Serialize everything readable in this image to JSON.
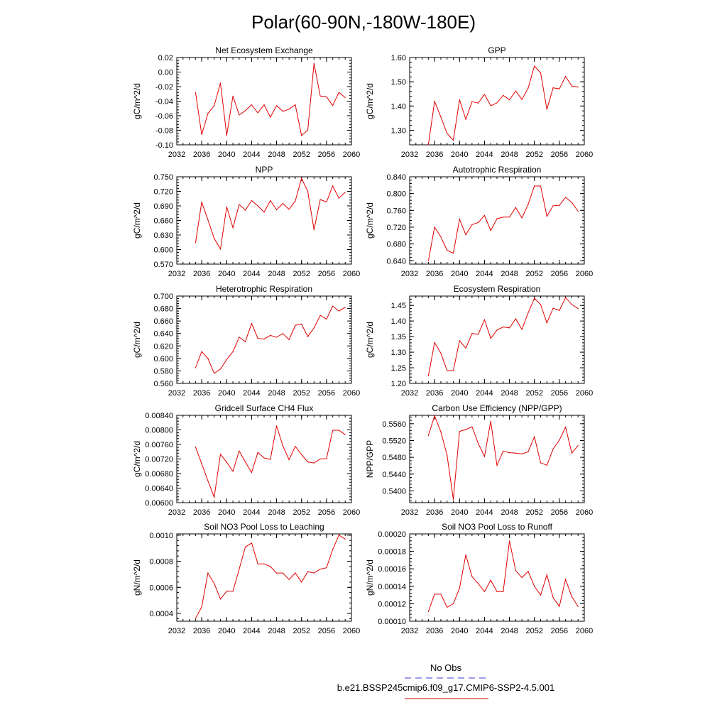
{
  "title": "Polar(60-90N,-180W-180E)",
  "legend": {
    "obs_label": "No Obs",
    "obs_color": "#3b3bd6",
    "model_label": "b.e21.BSSP245cmip6.f09_g17.CMIP6-SSP2-4.5.001",
    "model_color": "#e00000"
  },
  "chart_data": [
    {
      "type": "line",
      "title": "Net Ecosystem Exchange",
      "ylabel": "gC/m^2/d",
      "xlim": [
        2032,
        2060
      ],
      "ylim": [
        -0.1,
        0.02
      ],
      "xticks": [
        "2032",
        "2036",
        "2040",
        "2044",
        "2048",
        "2052",
        "2056",
        "2060"
      ],
      "yticks": [
        "-0.10",
        "-0.08",
        "-0.06",
        "-0.04",
        "-0.02",
        "0.00",
        "0.02"
      ],
      "x": [
        2035,
        2036,
        2037,
        2038,
        2039,
        2040,
        2041,
        2042,
        2043,
        2044,
        2045,
        2046,
        2047,
        2048,
        2049,
        2050,
        2051,
        2052,
        2053,
        2054,
        2055,
        2056,
        2057,
        2058,
        2059
      ],
      "series": [
        {
          "values": [
            -0.028,
            -0.086,
            -0.057,
            -0.046,
            -0.015,
            -0.087,
            -0.033,
            -0.059,
            -0.053,
            -0.045,
            -0.056,
            -0.045,
            -0.062,
            -0.046,
            -0.054,
            -0.051,
            -0.045,
            -0.087,
            -0.08,
            0.012,
            -0.033,
            -0.034,
            -0.046,
            -0.028,
            -0.035
          ]
        }
      ]
    },
    {
      "type": "line",
      "title": "GPP",
      "ylabel": "gC/m^2/d",
      "xlim": [
        2032,
        2060
      ],
      "ylim": [
        1.24,
        1.6
      ],
      "xticks": [
        "2032",
        "2036",
        "2040",
        "2044",
        "2048",
        "2052",
        "2056",
        "2060"
      ],
      "yticks": [
        "1.30",
        "1.40",
        "1.50",
        "1.60"
      ],
      "x": [
        2035,
        2036,
        2037,
        2038,
        2039,
        2040,
        2041,
        2042,
        2043,
        2044,
        2045,
        2046,
        2047,
        2048,
        2049,
        2050,
        2051,
        2052,
        2053,
        2054,
        2055,
        2056,
        2057,
        2058,
        2059
      ],
      "series": [
        {
          "values": [
            1.24,
            1.419,
            1.355,
            1.287,
            1.259,
            1.426,
            1.345,
            1.418,
            1.412,
            1.448,
            1.401,
            1.413,
            1.444,
            1.426,
            1.462,
            1.427,
            1.474,
            1.565,
            1.537,
            1.386,
            1.475,
            1.471,
            1.522,
            1.483,
            1.478
          ]
        }
      ]
    },
    {
      "type": "line",
      "title": "NPP",
      "ylabel": "gC/m^2/d",
      "xlim": [
        2032,
        2060
      ],
      "ylim": [
        0.57,
        0.75
      ],
      "xticks": [
        "2032",
        "2036",
        "2040",
        "2044",
        "2048",
        "2052",
        "2056",
        "2060"
      ],
      "yticks": [
        "0.570",
        "0.600",
        "0.630",
        "0.660",
        "0.690",
        "0.720",
        "0.750"
      ],
      "x": [
        2035,
        2036,
        2037,
        2038,
        2039,
        2040,
        2041,
        2042,
        2043,
        2044,
        2045,
        2046,
        2047,
        2048,
        2049,
        2050,
        2051,
        2052,
        2053,
        2054,
        2055,
        2056,
        2057,
        2058,
        2059
      ],
      "series": [
        {
          "values": [
            0.614,
            0.698,
            0.661,
            0.623,
            0.601,
            0.688,
            0.645,
            0.693,
            0.681,
            0.701,
            0.69,
            0.677,
            0.701,
            0.682,
            0.695,
            0.683,
            0.7,
            0.747,
            0.72,
            0.641,
            0.703,
            0.698,
            0.731,
            0.706,
            0.718
          ]
        }
      ]
    },
    {
      "type": "line",
      "title": "Autotrophic Respiration",
      "ylabel": "gC/m^2/d",
      "xlim": [
        2032,
        2060
      ],
      "ylim": [
        0.632,
        0.84
      ],
      "xticks": [
        "2032",
        "2036",
        "2040",
        "2044",
        "2048",
        "2052",
        "2056",
        "2060"
      ],
      "yticks": [
        "0.640",
        "0.680",
        "0.720",
        "0.760",
        "0.800",
        "0.840"
      ],
      "x": [
        2035,
        2036,
        2037,
        2038,
        2039,
        2040,
        2041,
        2042,
        2043,
        2044,
        2045,
        2046,
        2047,
        2048,
        2049,
        2050,
        2051,
        2052,
        2053,
        2054,
        2055,
        2056,
        2057,
        2058,
        2059
      ],
      "series": [
        {
          "values": [
            0.64,
            0.72,
            0.697,
            0.665,
            0.658,
            0.739,
            0.702,
            0.726,
            0.731,
            0.748,
            0.712,
            0.74,
            0.744,
            0.744,
            0.767,
            0.742,
            0.774,
            0.818,
            0.818,
            0.746,
            0.771,
            0.772,
            0.791,
            0.779,
            0.758
          ]
        }
      ]
    },
    {
      "type": "line",
      "title": "Heterotrophic Respiration",
      "ylabel": "gC/m^2/d",
      "xlim": [
        2032,
        2060
      ],
      "ylim": [
        0.56,
        0.7
      ],
      "xticks": [
        "2032",
        "2036",
        "2040",
        "2044",
        "2048",
        "2052",
        "2056",
        "2060"
      ],
      "yticks": [
        "0.560",
        "0.580",
        "0.600",
        "0.620",
        "0.640",
        "0.660",
        "0.680",
        "0.700"
      ],
      "x": [
        2035,
        2036,
        2037,
        2038,
        2039,
        2040,
        2041,
        2042,
        2043,
        2044,
        2045,
        2046,
        2047,
        2048,
        2049,
        2050,
        2051,
        2052,
        2053,
        2054,
        2055,
        2056,
        2057,
        2058,
        2059
      ],
      "series": [
        {
          "values": [
            0.585,
            0.611,
            0.6,
            0.576,
            0.583,
            0.598,
            0.611,
            0.634,
            0.627,
            0.656,
            0.632,
            0.631,
            0.637,
            0.634,
            0.64,
            0.63,
            0.653,
            0.655,
            0.635,
            0.649,
            0.669,
            0.663,
            0.684,
            0.676,
            0.682
          ]
        }
      ]
    },
    {
      "type": "line",
      "title": "Ecosystem Respiration",
      "ylabel": "gC/m^2/d",
      "xlim": [
        2032,
        2060
      ],
      "ylim": [
        1.2,
        1.48
      ],
      "xticks": [
        "2032",
        "2036",
        "2040",
        "2044",
        "2048",
        "2052",
        "2056",
        "2060"
      ],
      "yticks": [
        "1.20",
        "1.25",
        "1.30",
        "1.35",
        "1.40",
        "1.45"
      ],
      "x": [
        2035,
        2036,
        2037,
        2038,
        2039,
        2040,
        2041,
        2042,
        2043,
        2044,
        2045,
        2046,
        2047,
        2048,
        2049,
        2050,
        2051,
        2052,
        2053,
        2054,
        2055,
        2056,
        2057,
        2058,
        2059
      ],
      "series": [
        {
          "values": [
            1.224,
            1.331,
            1.297,
            1.241,
            1.241,
            1.337,
            1.313,
            1.36,
            1.357,
            1.404,
            1.344,
            1.371,
            1.381,
            1.378,
            1.407,
            1.373,
            1.426,
            1.473,
            1.453,
            1.394,
            1.441,
            1.434,
            1.475,
            1.453,
            1.44
          ]
        }
      ]
    },
    {
      "type": "line",
      "title": "Gridcell Surface CH4 Flux",
      "ylabel": "gC/m^2/d",
      "xlim": [
        2032,
        2060
      ],
      "ylim": [
        0.006,
        0.0084
      ],
      "xticks": [
        "2032",
        "2036",
        "2040",
        "2044",
        "2048",
        "2052",
        "2056",
        "2060"
      ],
      "yticks": [
        "0.00600",
        "0.00640",
        "0.00680",
        "0.00720",
        "0.00760",
        "0.00800",
        "0.00840"
      ],
      "x": [
        2035,
        2036,
        2037,
        2038,
        2039,
        2040,
        2041,
        2042,
        2043,
        2044,
        2045,
        2046,
        2047,
        2048,
        2049,
        2050,
        2051,
        2052,
        2053,
        2054,
        2055,
        2056,
        2057,
        2058,
        2059
      ],
      "series": [
        {
          "values": [
            0.00753,
            0.00707,
            0.0066,
            0.00615,
            0.00733,
            0.00711,
            0.00686,
            0.00742,
            0.00712,
            0.00683,
            0.00738,
            0.00723,
            0.00719,
            0.00811,
            0.00756,
            0.00718,
            0.00755,
            0.00732,
            0.00712,
            0.00709,
            0.0072,
            0.00721,
            0.00799,
            0.00799,
            0.00787
          ]
        }
      ]
    },
    {
      "type": "line",
      "title": "Carbon Use Efficiency (NPP/GPP)",
      "ylabel": "NPP/GPP",
      "xlim": [
        2032,
        2060
      ],
      "ylim": [
        0.5372,
        0.558
      ],
      "xticks": [
        "2032",
        "2036",
        "2040",
        "2044",
        "2048",
        "2052",
        "2056",
        "2060"
      ],
      "yticks": [
        "0.5400",
        "0.5440",
        "0.5480",
        "0.5520",
        "0.5560"
      ],
      "x": [
        2035,
        2036,
        2037,
        2038,
        2039,
        2040,
        2041,
        2042,
        2043,
        2044,
        2045,
        2046,
        2047,
        2048,
        2049,
        2050,
        2051,
        2052,
        2053,
        2054,
        2055,
        2056,
        2057,
        2058,
        2059
      ],
      "series": [
        {
          "values": [
            0.5532,
            0.5579,
            0.5541,
            0.5485,
            0.538,
            0.5542,
            0.5546,
            0.5553,
            0.5513,
            0.5482,
            0.5566,
            0.5461,
            0.5495,
            0.5491,
            0.549,
            0.5488,
            0.5493,
            0.5529,
            0.5467,
            0.5461,
            0.55,
            0.5521,
            0.5552,
            0.549,
            0.5508
          ]
        }
      ]
    },
    {
      "type": "line",
      "title": "Soil NO3 Pool Loss to Leaching",
      "ylabel": "gN/m^2/d",
      "xlim": [
        2032,
        2060
      ],
      "ylim": [
        0.00034,
        0.00101
      ],
      "xticks": [
        "2032",
        "2036",
        "2040",
        "2044",
        "2048",
        "2052",
        "2056",
        "2060"
      ],
      "yticks": [
        "0.0004",
        "0.0006",
        "0.0008",
        "0.0010"
      ],
      "x": [
        2035,
        2036,
        2037,
        2038,
        2039,
        2040,
        2041,
        2042,
        2043,
        2044,
        2045,
        2046,
        2047,
        2048,
        2049,
        2050,
        2051,
        2052,
        2053,
        2054,
        2055,
        2056,
        2057,
        2058,
        2059
      ],
      "series": [
        {
          "values": [
            0.00036,
            0.00045,
            0.00071,
            0.00063,
            0.00051,
            0.00057,
            0.00057,
            0.00074,
            0.00091,
            0.00094,
            0.00078,
            0.00078,
            0.00076,
            0.00071,
            0.00071,
            0.00066,
            0.00071,
            0.00064,
            0.00072,
            0.00071,
            0.00074,
            0.00075,
            0.00089,
            0.001,
            0.00097
          ]
        }
      ]
    },
    {
      "type": "line",
      "title": "Soil NO3 Pool Loss to Runoff",
      "ylabel": "gN/m^2/d",
      "xlim": [
        2032,
        2060
      ],
      "ylim": [
        0.0001,
        0.0002
      ],
      "xticks": [
        "2032",
        "2036",
        "2040",
        "2044",
        "2048",
        "2052",
        "2056",
        "2060"
      ],
      "yticks": [
        "0.00010",
        "0.00012",
        "0.00014",
        "0.00016",
        "0.00018",
        "0.00020"
      ],
      "x": [
        2035,
        2036,
        2037,
        2038,
        2039,
        2040,
        2041,
        2042,
        2043,
        2044,
        2045,
        2046,
        2047,
        2048,
        2049,
        2050,
        2051,
        2052,
        2053,
        2054,
        2055,
        2056,
        2057,
        2058,
        2059
      ],
      "series": [
        {
          "values": [
            0.000111,
            0.000131,
            0.000131,
            0.000116,
            0.00012,
            0.000138,
            0.000176,
            0.000151,
            0.000143,
            0.000134,
            0.000147,
            0.000134,
            0.000134,
            0.000192,
            0.000158,
            0.00015,
            0.000157,
            0.00014,
            0.00013,
            0.000153,
            0.000127,
            0.000117,
            0.000148,
            0.000128,
            0.000117
          ]
        }
      ]
    }
  ]
}
